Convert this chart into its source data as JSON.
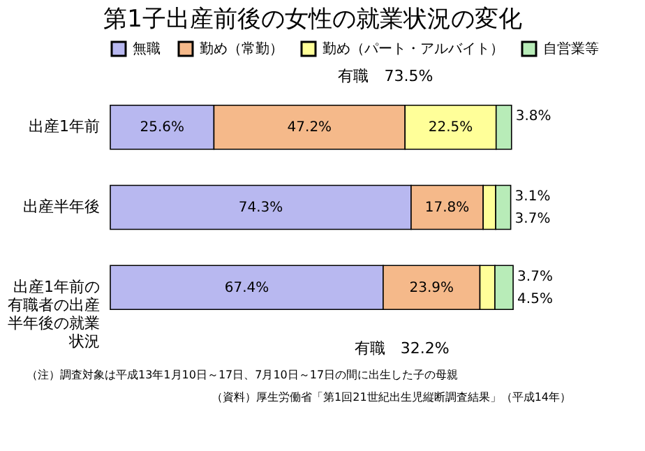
{
  "chart_data": {
    "type": "bar",
    "orientation": "horizontal",
    "stacked": true,
    "title": "第1子出産前後の女性の就業状況の変化",
    "categories": [
      "出産1年前",
      "出産半年後",
      "出産1年前の有職者の出産半年後の就業状況"
    ],
    "series": [
      {
        "name": "無職",
        "color": "#b8b8f0",
        "values": [
          25.6,
          74.3,
          67.4
        ],
        "value_labels": [
          "25.6%",
          "74.3%",
          "67.4%"
        ]
      },
      {
        "name": "勤め（常勤）",
        "color": "#f5b98a",
        "values": [
          47.2,
          17.8,
          23.9
        ],
        "value_labels": [
          "47.2%",
          "17.8%",
          "23.9%"
        ]
      },
      {
        "name": "勤め（パート・アルバイト）",
        "color": "#ffff99",
        "values": [
          22.5,
          3.1,
          3.7
        ],
        "value_labels": [
          "22.5%",
          "3.1%",
          "3.7%"
        ]
      },
      {
        "name": "自営業等",
        "color": "#b8ecb8",
        "values": [
          3.8,
          3.7,
          4.5
        ],
        "value_labels": [
          "3.8%",
          "3.7%",
          "4.5%"
        ]
      }
    ],
    "tick_labels": "y",
    "legend": "top",
    "annotations": [
      "有職　73.5%",
      "有職　32.2%",
      "（注）調査対象は平成13年1月10日～17日、7月10日～17日の間に出生した子の母親",
      "（資料）厚生労働省「第1回21世紀出生児縦断調査結果」（平成14年）"
    ]
  }
}
